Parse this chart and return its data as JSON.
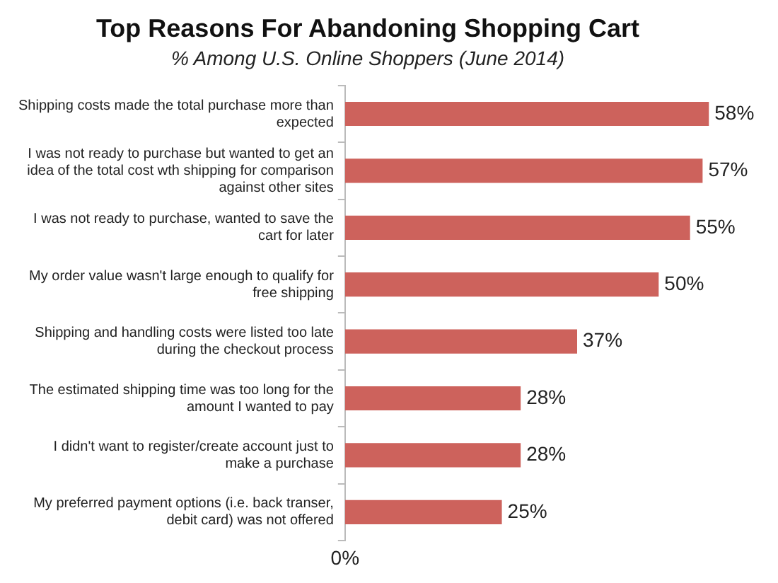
{
  "chart_data": {
    "type": "bar",
    "orientation": "horizontal",
    "title": "Top Reasons For Abandoning Shopping Cart",
    "subtitle": "% Among U.S. Online Shoppers (June 2014)",
    "categories": [
      "Shipping costs made the total purchase more than expected",
      "I was not ready to purchase but wanted to get an idea of the total cost wth shipping for comparison against other sites",
      "I was not ready to purchase, wanted to save the cart for later",
      "My order value wasn't large enough to qualify for free shipping",
      "Shipping and handling costs were listed too late during the checkout process",
      "The estimated shipping time was too long for the amount I wanted to pay",
      "I didn't want to register/create account just to make a purchase",
      "My preferred payment options (i.e. back transer, debit card) was not offered"
    ],
    "values": [
      58,
      57,
      55,
      50,
      37,
      28,
      28,
      25
    ],
    "value_labels": [
      "58%",
      "57%",
      "55%",
      "50%",
      "37%",
      "28%",
      "28%",
      "25%"
    ],
    "color": "#cd625c",
    "annotations": [
      "0%"
    ],
    "grid": false,
    "legend": false
  }
}
